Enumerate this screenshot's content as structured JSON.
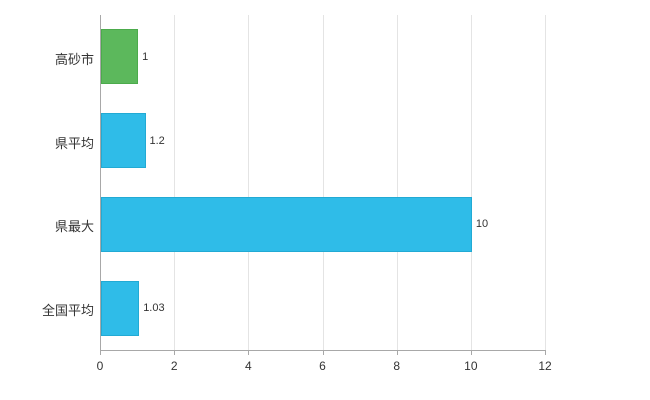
{
  "chart_data": {
    "type": "bar",
    "orientation": "horizontal",
    "title": "",
    "xlabel": "",
    "ylabel": "",
    "categories": [
      "高砂市",
      "県平均",
      "県最大",
      "全国平均"
    ],
    "values": [
      1,
      1.2,
      10,
      1.03
    ],
    "value_labels": [
      "1",
      "1.2",
      "10",
      "1.03"
    ],
    "bar_colors": [
      "#5cb85c",
      "#2fbce8",
      "#2fbce8",
      "#2fbce8"
    ],
    "bar_border_colors": [
      "#4cab4c",
      "#22aad4",
      "#22aad4",
      "#22aad4"
    ],
    "xlim": [
      0,
      12
    ],
    "x_ticks": [
      0,
      2,
      4,
      6,
      8,
      10,
      12
    ],
    "x_tick_labels": [
      "0",
      "2",
      "4",
      "6",
      "8",
      "10",
      "12"
    ],
    "grid": "vertical",
    "legend": "none",
    "background_color": "#ffffff",
    "gridline_color": "#e4e4e4",
    "axis_color": "#a8a8a8",
    "label_color": "#333333"
  }
}
